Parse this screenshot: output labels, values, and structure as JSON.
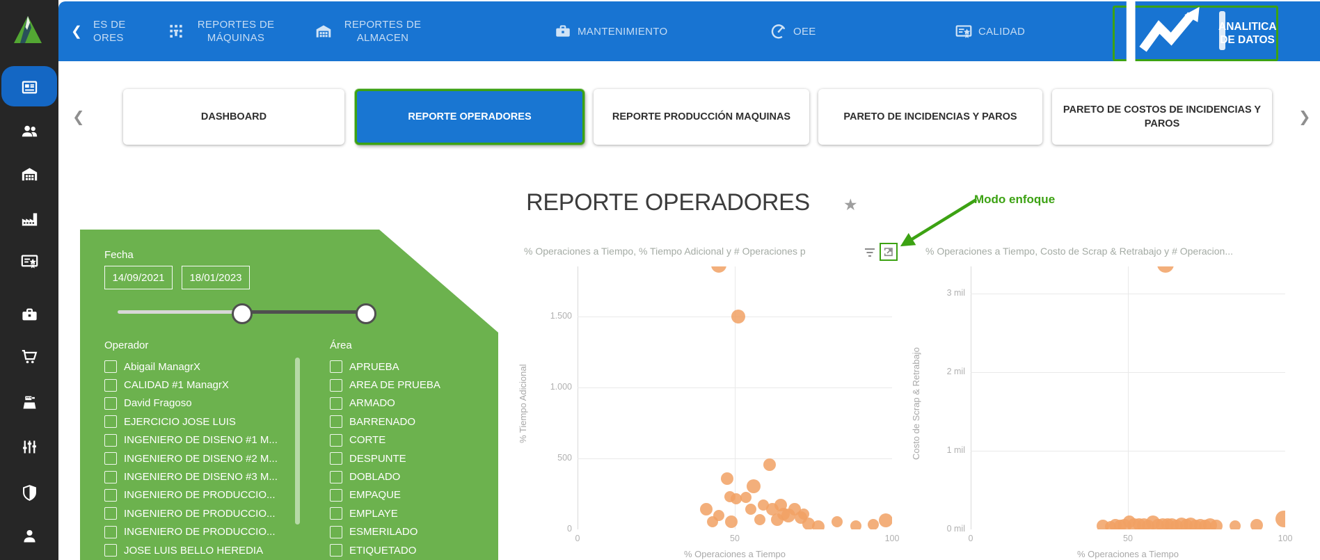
{
  "icons": {
    "star": "★",
    "chevron_left": "❮",
    "chevron_right": "❯",
    "sidebar_icons": [
      "dashboard-news",
      "users",
      "warehouse",
      "factory",
      "certificate",
      "toolbox",
      "cart",
      "cash-register",
      "sliders",
      "shield",
      "person"
    ]
  },
  "colors": {
    "nav_blue": "#1874d2",
    "sidebar_dark": "#262626",
    "panel_green": "#6cb24e",
    "annotation_green": "#3ca213",
    "dot_orange": "#f1a164",
    "active_tab_blue": "#1976d2"
  },
  "nav": {
    "back_chevron": "❮",
    "truncated_item": {
      "line1": "ES DE",
      "line2": "ORES"
    },
    "items": [
      {
        "label": "REPORTES DE MÁQUINAS",
        "icon": "machine-grid"
      },
      {
        "label": "REPORTES DE ALMACEN",
        "icon": "warehouse"
      },
      {
        "label": "MANTENIMIENTO",
        "icon": "toolbox"
      },
      {
        "label": "OEE",
        "icon": "gauge"
      },
      {
        "label": "CALIDAD",
        "icon": "certificate"
      },
      {
        "label": "ANALITICA DE DATOS",
        "icon": "line-chart",
        "active": true
      }
    ]
  },
  "tabs": {
    "prev": "❮",
    "next": "❯",
    "items": [
      {
        "label": "DASHBOARD",
        "active": false
      },
      {
        "label": "REPORTE OPERADORES",
        "active": true
      },
      {
        "label": "REPORTE PRODUCCIÓN MAQUINAS",
        "active": false
      },
      {
        "label": "PARETO DE INCIDENCIAS Y PAROS",
        "active": false
      },
      {
        "label": "PARETO DE COSTOS DE INCIDENCIAS Y PAROS",
        "active": false
      }
    ]
  },
  "page": {
    "title": "REPORTE OPERADORES"
  },
  "annotation": {
    "label": "Modo enfoque"
  },
  "filters": {
    "fecha_label": "Fecha",
    "date_from": "14/09/2021",
    "date_to": "18/01/2023",
    "operador_label": "Operador",
    "operators": [
      "Abigail ManagrX",
      "CALIDAD #1 ManagrX",
      "David Fragoso",
      "EJERCICIO JOSE LUIS",
      "INGENIERO DE DISENO #1 M...",
      "INGENIERO DE DISENO #2 M...",
      "INGENIERO DE DISENO #3 M...",
      "INGENIERO DE PRODUCCIO...",
      "INGENIERO DE PRODUCCIO...",
      "INGENIERO DE PRODUCCIO...",
      "JOSE LUIS BELLO HEREDIA"
    ],
    "area_label": "Área",
    "areas": [
      "APRUEBA",
      "AREA DE PRUEBA",
      "ARMADO",
      "BARRENADO",
      "CORTE",
      "DESPUNTE",
      "DOBLADO",
      "EMPAQUE",
      "EMPLAYE",
      "ESMERILADO",
      "ETIQUETADO"
    ]
  },
  "chart_data": [
    {
      "type": "scatter",
      "title": "% Operaciones a Tiempo, % Tiempo Adicional y # Operaciones p",
      "xlabel": "% Operaciones a Tiempo",
      "ylabel": "% Tiempo Adicional",
      "xlim": [
        0,
        100
      ],
      "ylim": [
        0,
        1853
      ],
      "grid": true,
      "legend": "none",
      "x_ticks": [
        {
          "v": 0,
          "label": "0"
        },
        {
          "v": 50,
          "label": "50"
        },
        {
          "v": 100,
          "label": "100"
        }
      ],
      "y_ticks": [
        {
          "v": 0,
          "label": "0"
        },
        {
          "v": 500,
          "label": "500"
        },
        {
          "v": 1000,
          "label": "1.000"
        },
        {
          "v": 1500,
          "label": "1.500"
        }
      ],
      "points": [
        {
          "x": 45,
          "y": 1865,
          "r": 11
        },
        {
          "x": 51,
          "y": 1500,
          "r": 10
        },
        {
          "x": 41,
          "y": 140,
          "r": 9
        },
        {
          "x": 43,
          "y": 55,
          "r": 8
        },
        {
          "x": 45,
          "y": 100,
          "r": 8
        },
        {
          "x": 47.5,
          "y": 360,
          "r": 9
        },
        {
          "x": 48.5,
          "y": 230,
          "r": 8
        },
        {
          "x": 49,
          "y": 55,
          "r": 9
        },
        {
          "x": 50.5,
          "y": 215,
          "r": 8
        },
        {
          "x": 53.5,
          "y": 225,
          "r": 8
        },
        {
          "x": 55,
          "y": 140,
          "r": 8
        },
        {
          "x": 56,
          "y": 305,
          "r": 10
        },
        {
          "x": 58,
          "y": 70,
          "r": 8
        },
        {
          "x": 59,
          "y": 170,
          "r": 8
        },
        {
          "x": 61,
          "y": 455,
          "r": 9
        },
        {
          "x": 62,
          "y": 140,
          "r": 9
        },
        {
          "x": 63.5,
          "y": 70,
          "r": 9
        },
        {
          "x": 64.5,
          "y": 170,
          "r": 9
        },
        {
          "x": 65.5,
          "y": 110,
          "r": 9
        },
        {
          "x": 67,
          "y": 100,
          "r": 10
        },
        {
          "x": 69,
          "y": 140,
          "r": 9
        },
        {
          "x": 71,
          "y": 85,
          "r": 9
        },
        {
          "x": 72,
          "y": 110,
          "r": 8
        },
        {
          "x": 73.5,
          "y": 40,
          "r": 9
        },
        {
          "x": 76.5,
          "y": 20,
          "r": 9
        },
        {
          "x": 82.5,
          "y": 55,
          "r": 8
        },
        {
          "x": 88.5,
          "y": 25,
          "r": 8
        },
        {
          "x": 94,
          "y": 35,
          "r": 8
        },
        {
          "x": 98,
          "y": 65,
          "r": 10
        }
      ]
    },
    {
      "type": "scatter",
      "title": "% Operaciones a Tiempo, Costo de Scrap & Retrabajo y # Operacion...",
      "xlabel": "% Operaciones a Tiempo",
      "ylabel": "Costo de Scrap & Retrabajo",
      "y_unit": "mil",
      "xlim": [
        0,
        100
      ],
      "ylim": [
        0,
        3.35
      ],
      "grid": true,
      "legend": "none",
      "x_ticks": [
        {
          "v": 0,
          "label": "0"
        },
        {
          "v": 50,
          "label": "50"
        },
        {
          "v": 100,
          "label": "100"
        }
      ],
      "y_ticks": [
        {
          "v": 0,
          "label": "0 mil"
        },
        {
          "v": 1,
          "label": "1 mil"
        },
        {
          "v": 2,
          "label": "2 mil"
        },
        {
          "v": 3,
          "label": "3 mil"
        }
      ],
      "points": [
        {
          "x": 62,
          "y": 3.38,
          "r": 12
        },
        {
          "x": 42,
          "y": 0.045,
          "r": 9
        },
        {
          "x": 44.5,
          "y": 0.035,
          "r": 8
        },
        {
          "x": 46,
          "y": 0.05,
          "r": 9
        },
        {
          "x": 47.5,
          "y": 0.04,
          "r": 9
        },
        {
          "x": 49,
          "y": 0.045,
          "r": 10
        },
        {
          "x": 50.5,
          "y": 0.1,
          "r": 9
        },
        {
          "x": 52,
          "y": 0.05,
          "r": 10
        },
        {
          "x": 53.5,
          "y": 0.06,
          "r": 9
        },
        {
          "x": 55,
          "y": 0.05,
          "r": 10
        },
        {
          "x": 56.5,
          "y": 0.045,
          "r": 9
        },
        {
          "x": 58,
          "y": 0.09,
          "r": 10
        },
        {
          "x": 59.5,
          "y": 0.05,
          "r": 9
        },
        {
          "x": 61,
          "y": 0.055,
          "r": 10
        },
        {
          "x": 62.5,
          "y": 0.06,
          "r": 9
        },
        {
          "x": 64,
          "y": 0.05,
          "r": 10
        },
        {
          "x": 65.5,
          "y": 0.045,
          "r": 9
        },
        {
          "x": 67,
          "y": 0.06,
          "r": 10
        },
        {
          "x": 68.5,
          "y": 0.05,
          "r": 9
        },
        {
          "x": 70,
          "y": 0.065,
          "r": 10
        },
        {
          "x": 71.5,
          "y": 0.045,
          "r": 9
        },
        {
          "x": 73,
          "y": 0.05,
          "r": 9
        },
        {
          "x": 74.5,
          "y": 0.045,
          "r": 9
        },
        {
          "x": 76,
          "y": 0.055,
          "r": 10
        },
        {
          "x": 78,
          "y": 0.045,
          "r": 9
        },
        {
          "x": 84,
          "y": 0.045,
          "r": 8
        },
        {
          "x": 91,
          "y": 0.05,
          "r": 9
        },
        {
          "x": 99.5,
          "y": 0.13,
          "r": 12
        }
      ]
    }
  ]
}
